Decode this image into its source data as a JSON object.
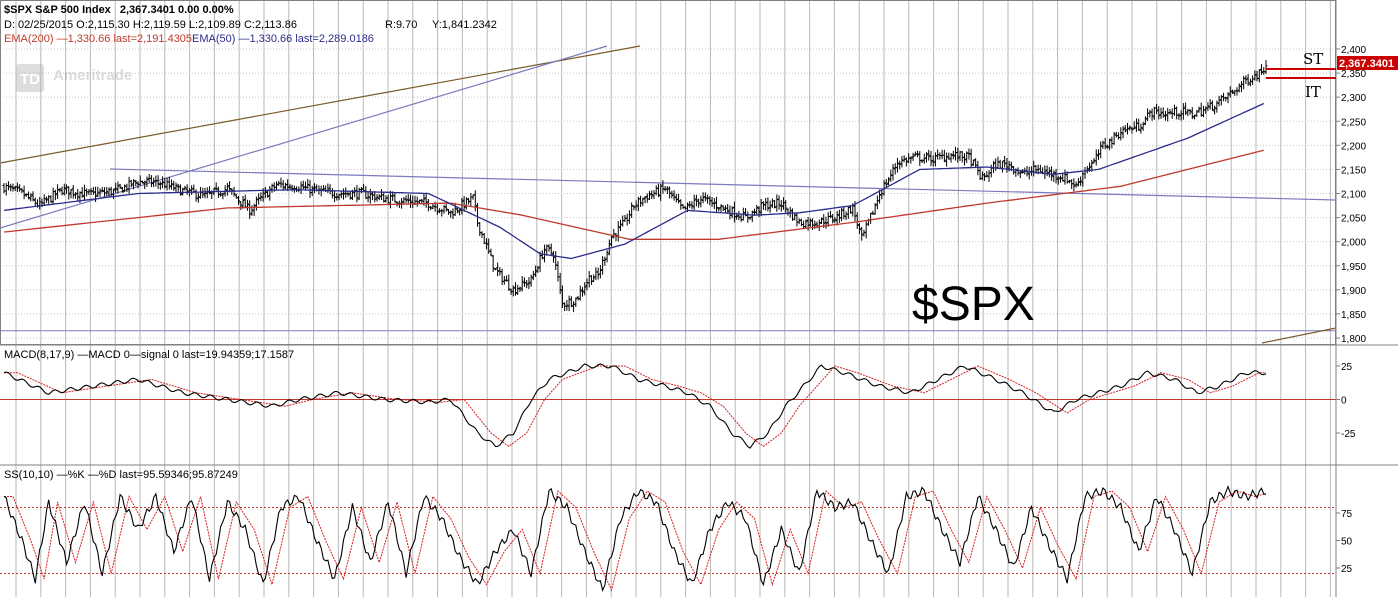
{
  "header": {
    "line1_symbol": "$SPX S&P 500 Index",
    "line1_price": "2,367.3401  0.00  0.00%",
    "line2_ohlc": "D: 02/25/2015 O:2,115.30 H:2,119.59 L:2,109.89 C:2,113.86",
    "line2_r": "R:9.70",
    "line2_y": "Y:1,841.2342",
    "line3_ema200": "EMA(200) —1,330.66 last=2,191.4305",
    "line3_ema50": "EMA(50) —1,330.66 last=2,289.0186"
  },
  "watermark": "Ameritrade",
  "watermark_logo": "TD",
  "big_label": "$SPX",
  "annotations": {
    "st": "ST",
    "it": "IT"
  },
  "colors": {
    "price": "#000000",
    "ema200": "#c0392b",
    "ema50": "#2c2c8c",
    "trend_brown": "#7a5a2a",
    "trend_blue": "#7a7ac0",
    "grid": "#b8b8b8",
    "zero": "#c0392b",
    "macd_signal": "#d62020",
    "last_tag_bg": "#cc0000"
  },
  "chart_data": [
    {
      "type": "line",
      "name": "price",
      "title": "$SPX S&P 500 Index",
      "last_value_label": "2,367.3401",
      "ylim": [
        1775,
        2410
      ],
      "y_ticks": [
        "2,400",
        "2,350",
        "2,300",
        "2,250",
        "2,200",
        "2,150",
        "2,100",
        "2,050",
        "2,000",
        "1,950",
        "1,900",
        "1,850",
        "1,800"
      ],
      "y_tick_values": [
        2400,
        2350,
        2300,
        2250,
        2200,
        2150,
        2100,
        2050,
        2000,
        1950,
        1900,
        1850,
        1800
      ],
      "x_sessions": 505,
      "close_anchors": [
        [
          0,
          2114
        ],
        [
          8,
          2100
        ],
        [
          16,
          2075
        ],
        [
          26,
          2108
        ],
        [
          38,
          2098
        ],
        [
          50,
          2105
        ],
        [
          60,
          2125
        ],
        [
          70,
          2122
        ],
        [
          80,
          2105
        ],
        [
          90,
          2095
        ],
        [
          100,
          2110
        ],
        [
          110,
          2065
        ],
        [
          115,
          2090
        ],
        [
          122,
          2118
        ],
        [
          132,
          2115
        ],
        [
          140,
          2105
        ],
        [
          150,
          2100
        ],
        [
          160,
          2100
        ],
        [
          170,
          2090
        ],
        [
          180,
          2085
        ],
        [
          190,
          2080
        ],
        [
          200,
          2060
        ],
        [
          210,
          2090
        ],
        [
          212,
          2040
        ],
        [
          220,
          1940
        ],
        [
          228,
          1900
        ],
        [
          236,
          1920
        ],
        [
          242,
          1985
        ],
        [
          246,
          1975
        ],
        [
          250,
          1870
        ],
        [
          256,
          1880
        ],
        [
          262,
          1925
        ],
        [
          266,
          1930
        ],
        [
          272,
          2010
        ],
        [
          278,
          2040
        ],
        [
          282,
          2075
        ],
        [
          288,
          2095
        ],
        [
          296,
          2110
        ],
        [
          304,
          2065
        ],
        [
          312,
          2090
        ],
        [
          322,
          2070
        ],
        [
          332,
          2050
        ],
        [
          340,
          2075
        ],
        [
          348,
          2080
        ],
        [
          356,
          2040
        ],
        [
          364,
          2040
        ],
        [
          372,
          2050
        ],
        [
          380,
          2070
        ],
        [
          384,
          2005
        ],
        [
          388,
          2050
        ],
        [
          392,
          2100
        ],
        [
          396,
          2130
        ],
        [
          400,
          2165
        ],
        [
          408,
          2175
        ],
        [
          416,
          2172
        ],
        [
          424,
          2180
        ],
        [
          432,
          2175
        ],
        [
          438,
          2130
        ],
        [
          444,
          2160
        ],
        [
          450,
          2160
        ],
        [
          456,
          2140
        ],
        [
          462,
          2150
        ],
        [
          470,
          2140
        ],
        [
          476,
          2130
        ],
        [
          480,
          2115
        ],
        [
          484,
          2150
        ],
        [
          488,
          2165
        ],
        [
          492,
          2200
        ],
        [
          496,
          2210
        ],
        [
          500,
          2230
        ],
        [
          508,
          2240
        ],
        [
          514,
          2270
        ],
        [
          520,
          2265
        ],
        [
          526,
          2270
        ],
        [
          532,
          2265
        ],
        [
          538,
          2275
        ],
        [
          544,
          2290
        ],
        [
          550,
          2310
        ],
        [
          556,
          2335
        ],
        [
          562,
          2350
        ],
        [
          565,
          2367
        ]
      ],
      "ema200_anchors": [
        [
          0,
          2020
        ],
        [
          100,
          2070
        ],
        [
          200,
          2080
        ],
        [
          232,
          2055
        ],
        [
          280,
          2005
        ],
        [
          320,
          2005
        ],
        [
          380,
          2040
        ],
        [
          440,
          2080
        ],
        [
          500,
          2115
        ],
        [
          565,
          2191
        ]
      ],
      "ema50_anchors": [
        [
          0,
          2065
        ],
        [
          60,
          2100
        ],
        [
          130,
          2108
        ],
        [
          190,
          2100
        ],
        [
          222,
          2030
        ],
        [
          240,
          1975
        ],
        [
          254,
          1965
        ],
        [
          278,
          1995
        ],
        [
          306,
          2065
        ],
        [
          336,
          2055
        ],
        [
          356,
          2060
        ],
        [
          380,
          2075
        ],
        [
          410,
          2150
        ],
        [
          440,
          2155
        ],
        [
          470,
          2140
        ],
        [
          490,
          2150
        ],
        [
          530,
          2215
        ],
        [
          565,
          2289
        ]
      ],
      "support_line": {
        "y": 1815
      }
    },
    {
      "type": "line",
      "name": "MACD",
      "title": "MACD(8,17,9) —MACD 0—signal 0 last=19.94359;17.1587",
      "ylim": [
        -45,
        30
      ],
      "y_ticks": [
        "25",
        "0",
        "-25"
      ],
      "y_tick_values": [
        25,
        0,
        -25
      ],
      "macd_anchors": [
        [
          0,
          20
        ],
        [
          20,
          5
        ],
        [
          40,
          10
        ],
        [
          60,
          15
        ],
        [
          80,
          5
        ],
        [
          100,
          0
        ],
        [
          120,
          -5
        ],
        [
          132,
          0
        ],
        [
          150,
          5
        ],
        [
          170,
          0
        ],
        [
          190,
          -2
        ],
        [
          200,
          0
        ],
        [
          212,
          -25
        ],
        [
          220,
          -35
        ],
        [
          228,
          -25
        ],
        [
          236,
          0
        ],
        [
          244,
          15
        ],
        [
          252,
          20
        ],
        [
          260,
          25
        ],
        [
          272,
          25
        ],
        [
          284,
          15
        ],
        [
          296,
          10
        ],
        [
          306,
          5
        ],
        [
          316,
          -5
        ],
        [
          326,
          -25
        ],
        [
          334,
          -35
        ],
        [
          342,
          -25
        ],
        [
          350,
          -5
        ],
        [
          358,
          10
        ],
        [
          366,
          25
        ],
        [
          376,
          20
        ],
        [
          392,
          10
        ],
        [
          406,
          5
        ],
        [
          418,
          15
        ],
        [
          430,
          25
        ],
        [
          444,
          15
        ],
        [
          456,
          5
        ],
        [
          470,
          -10
        ],
        [
          480,
          0
        ],
        [
          490,
          5
        ],
        [
          500,
          10
        ],
        [
          512,
          20
        ],
        [
          524,
          15
        ],
        [
          534,
          5
        ],
        [
          544,
          10
        ],
        [
          556,
          20
        ],
        [
          565,
          20
        ]
      ],
      "signal_lag": 6
    },
    {
      "type": "line",
      "name": "SS",
      "title": "SS(10,10) —%K —%D last=95.59346;95.87249",
      "ylim": [
        0,
        105
      ],
      "y_ticks": [
        "75",
        "50",
        "25"
      ],
      "y_tick_values": [
        75,
        50,
        25
      ],
      "ref_lines": [
        80,
        20
      ],
      "k_anchors": [
        [
          0,
          90
        ],
        [
          8,
          50
        ],
        [
          14,
          15
        ],
        [
          20,
          85
        ],
        [
          28,
          30
        ],
        [
          36,
          85
        ],
        [
          44,
          20
        ],
        [
          52,
          90
        ],
        [
          60,
          60
        ],
        [
          68,
          90
        ],
        [
          76,
          40
        ],
        [
          84,
          90
        ],
        [
          92,
          15
        ],
        [
          100,
          85
        ],
        [
          108,
          60
        ],
        [
          116,
          10
        ],
        [
          124,
          80
        ],
        [
          132,
          90
        ],
        [
          140,
          50
        ],
        [
          148,
          15
        ],
        [
          156,
          80
        ],
        [
          164,
          30
        ],
        [
          172,
          85
        ],
        [
          180,
          20
        ],
        [
          188,
          90
        ],
        [
          196,
          70
        ],
        [
          204,
          35
        ],
        [
          212,
          10
        ],
        [
          220,
          40
        ],
        [
          228,
          60
        ],
        [
          236,
          20
        ],
        [
          244,
          95
        ],
        [
          252,
          80
        ],
        [
          260,
          40
        ],
        [
          268,
          5
        ],
        [
          276,
          70
        ],
        [
          284,
          95
        ],
        [
          292,
          85
        ],
        [
          300,
          40
        ],
        [
          308,
          10
        ],
        [
          316,
          60
        ],
        [
          324,
          85
        ],
        [
          332,
          70
        ],
        [
          340,
          10
        ],
        [
          348,
          60
        ],
        [
          356,
          20
        ],
        [
          364,
          95
        ],
        [
          372,
          80
        ],
        [
          380,
          85
        ],
        [
          388,
          50
        ],
        [
          396,
          20
        ],
        [
          404,
          90
        ],
        [
          412,
          95
        ],
        [
          420,
          60
        ],
        [
          428,
          30
        ],
        [
          436,
          90
        ],
        [
          444,
          60
        ],
        [
          452,
          25
        ],
        [
          460,
          80
        ],
        [
          468,
          45
        ],
        [
          476,
          15
        ],
        [
          484,
          90
        ],
        [
          492,
          95
        ],
        [
          500,
          80
        ],
        [
          508,
          40
        ],
        [
          516,
          90
        ],
        [
          524,
          60
        ],
        [
          532,
          20
        ],
        [
          540,
          85
        ],
        [
          548,
          95
        ],
        [
          556,
          90
        ],
        [
          565,
          95
        ]
      ],
      "d_lag": 4
    }
  ]
}
